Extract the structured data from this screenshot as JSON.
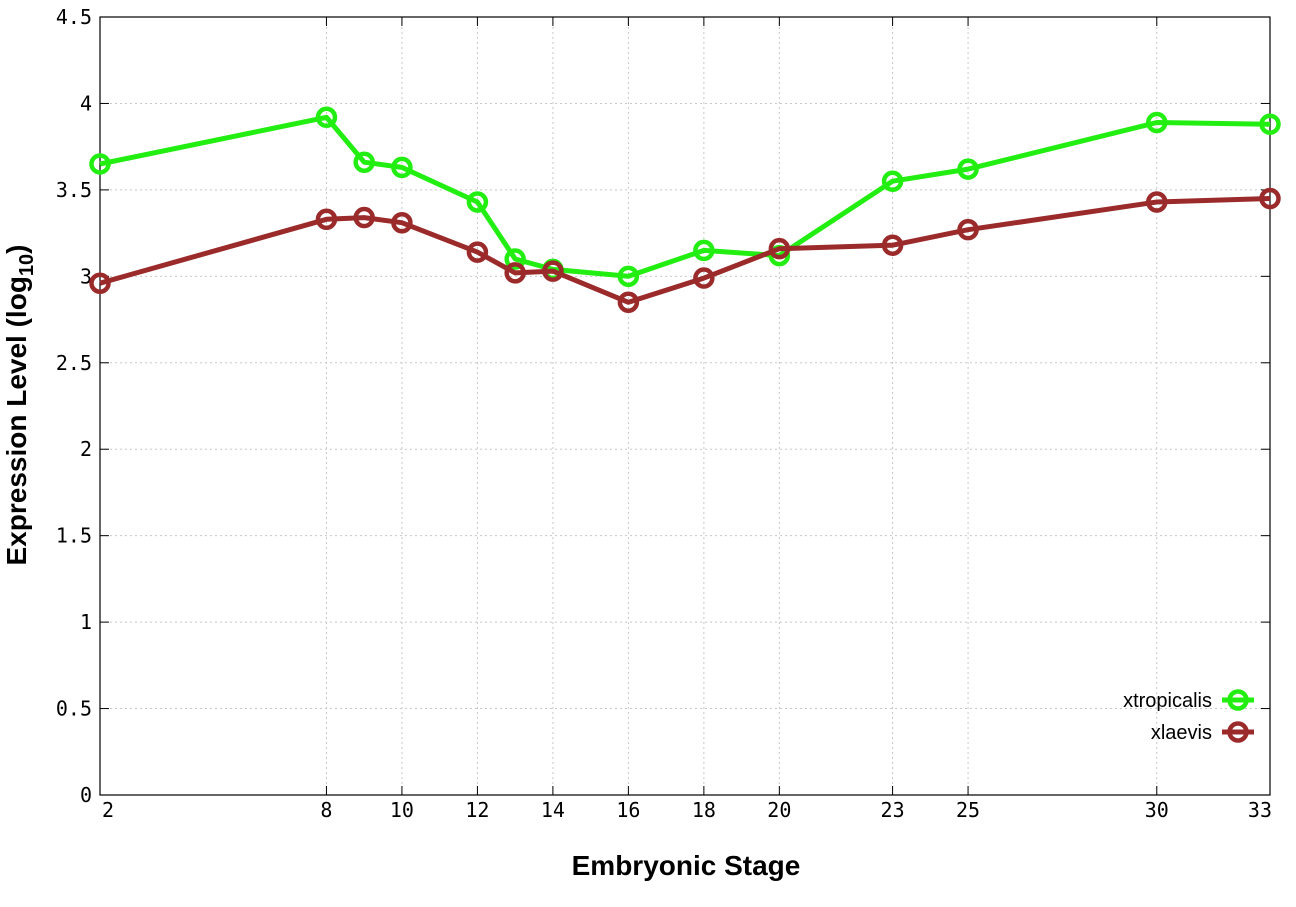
{
  "chart_data": {
    "type": "line",
    "xlabel": "Embryonic Stage",
    "ylabel_main": "Expression Level (log",
    "ylabel_sub": "10",
    "ylabel_close": ")",
    "xlim": [
      2,
      33
    ],
    "ylim": [
      0,
      4.5
    ],
    "x_ticks": [
      {
        "value": 2,
        "label": "2"
      },
      {
        "value": 8,
        "label": "8"
      },
      {
        "value": 10,
        "label": "10"
      },
      {
        "value": 12,
        "label": "12"
      },
      {
        "value": 14,
        "label": "14"
      },
      {
        "value": 16,
        "label": "16"
      },
      {
        "value": 18,
        "label": "18"
      },
      {
        "value": 20,
        "label": "20"
      },
      {
        "value": 23,
        "label": "23"
      },
      {
        "value": 25,
        "label": "25"
      },
      {
        "value": 30,
        "label": "30"
      },
      {
        "value": 33,
        "label": "33"
      }
    ],
    "y_ticks": [
      {
        "value": 0,
        "label": "0"
      },
      {
        "value": 0.5,
        "label": "0.5"
      },
      {
        "value": 1,
        "label": "1"
      },
      {
        "value": 1.5,
        "label": "1.5"
      },
      {
        "value": 2,
        "label": "2"
      },
      {
        "value": 2.5,
        "label": "2.5"
      },
      {
        "value": 3,
        "label": "3"
      },
      {
        "value": 3.5,
        "label": "3.5"
      },
      {
        "value": 4,
        "label": "4"
      },
      {
        "value": 4.5,
        "label": "4.5"
      }
    ],
    "grid": true,
    "legend_position": "bottom-right",
    "series": [
      {
        "name": "xtropicalis",
        "color": "#22ee11",
        "points": [
          [
            2,
            3.65
          ],
          [
            8,
            3.92
          ],
          [
            9,
            3.66
          ],
          [
            10,
            3.63
          ],
          [
            12,
            3.43
          ],
          [
            13,
            3.1
          ],
          [
            14,
            3.04
          ],
          [
            16,
            3.0
          ],
          [
            18,
            3.15
          ],
          [
            20,
            3.12
          ],
          [
            23,
            3.55
          ],
          [
            25,
            3.62
          ],
          [
            30,
            3.89
          ],
          [
            33,
            3.88
          ]
        ]
      },
      {
        "name": "xlaevis",
        "color": "#9b2b2b",
        "points": [
          [
            2,
            2.96
          ],
          [
            8,
            3.33
          ],
          [
            9,
            3.34
          ],
          [
            10,
            3.31
          ],
          [
            12,
            3.14
          ],
          [
            13,
            3.02
          ],
          [
            14,
            3.03
          ],
          [
            16,
            2.85
          ],
          [
            18,
            2.99
          ],
          [
            20,
            3.16
          ],
          [
            23,
            3.18
          ],
          [
            25,
            3.27
          ],
          [
            30,
            3.43
          ],
          [
            33,
            3.45
          ]
        ]
      }
    ]
  }
}
